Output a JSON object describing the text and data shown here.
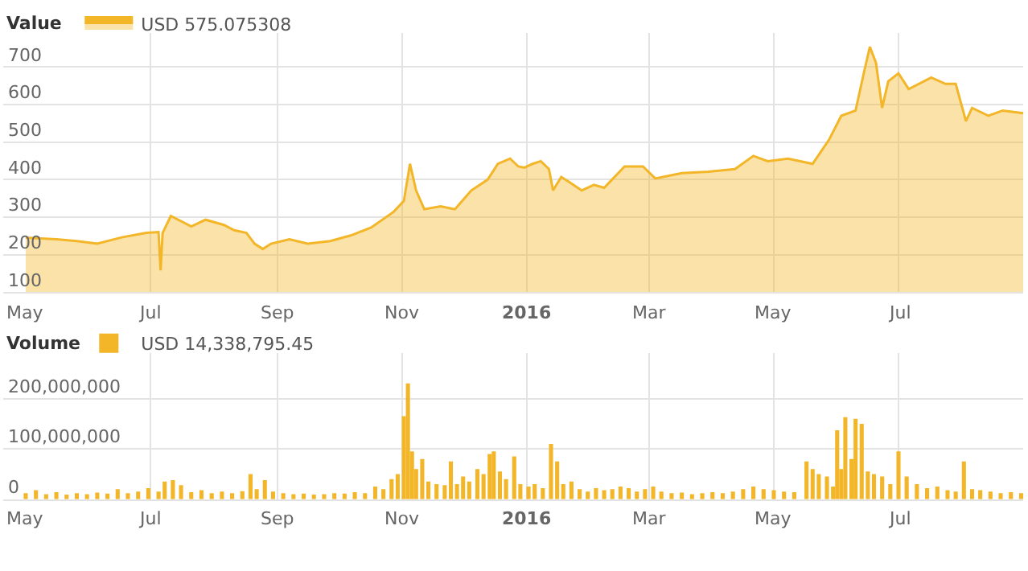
{
  "chart_data": [
    {
      "type": "area",
      "title": "Value",
      "legend": "top left",
      "grid": true,
      "xlim": [
        "2015-04-20",
        "2016-08-31"
      ],
      "xticks": [
        {
          "value": "2015-05-01",
          "label": "May"
        },
        {
          "value": "2015-07-01",
          "label": "Jul"
        },
        {
          "value": "2015-09-01",
          "label": "Sep"
        },
        {
          "value": "2015-11-01",
          "label": "Nov"
        },
        {
          "value": "2016-01-01",
          "label": "2016"
        },
        {
          "value": "2016-03-01",
          "label": "Mar"
        },
        {
          "value": "2016-05-01",
          "label": "May"
        },
        {
          "value": "2016-07-01",
          "label": "Jul"
        }
      ],
      "ylim": [
        100,
        790
      ],
      "yticks": [
        100,
        200,
        300,
        400,
        500,
        600,
        700
      ],
      "x": [
        "2015-05-01",
        "2015-05-16",
        "2015-05-26",
        "2015-06-05",
        "2015-06-17",
        "2015-06-29",
        "2015-07-05",
        "2015-07-06",
        "2015-07-07",
        "2015-07-11",
        "2015-07-21",
        "2015-07-28",
        "2015-08-06",
        "2015-08-11",
        "2015-08-17",
        "2015-08-21",
        "2015-08-25",
        "2015-08-29",
        "2015-09-07",
        "2015-09-16",
        "2015-09-27",
        "2015-10-07",
        "2015-10-17",
        "2015-10-28",
        "2015-11-02",
        "2015-11-05",
        "2015-11-08",
        "2015-11-12",
        "2015-11-20",
        "2015-11-27",
        "2015-12-05",
        "2015-12-13",
        "2015-12-18",
        "2015-12-24",
        "2015-12-28",
        "2015-12-31",
        "2016-01-04",
        "2016-01-08",
        "2016-01-12",
        "2016-01-14",
        "2016-01-18",
        "2016-01-22",
        "2016-01-28",
        "2016-02-03",
        "2016-02-08",
        "2016-02-18",
        "2016-02-27",
        "2016-03-04",
        "2016-03-17",
        "2016-03-30",
        "2016-04-12",
        "2016-04-21",
        "2016-04-28",
        "2016-05-08",
        "2016-05-20",
        "2016-05-28",
        "2016-06-03",
        "2016-06-10",
        "2016-06-14",
        "2016-06-17",
        "2016-06-20",
        "2016-06-23",
        "2016-06-26",
        "2016-07-01",
        "2016-07-06",
        "2016-07-17",
        "2016-07-24",
        "2016-07-29",
        "2016-08-03",
        "2016-08-06",
        "2016-08-14",
        "2016-08-21",
        "2016-08-31"
      ],
      "series": [
        {
          "name": "USD 575.075308",
          "color": "#f2b628",
          "values": [
            245,
            241,
            236,
            229,
            246,
            258,
            260,
            158,
            258,
            303,
            275,
            293,
            279,
            265,
            258,
            229,
            215,
            229,
            241,
            229,
            236,
            251,
            272,
            314,
            343,
            442,
            371,
            321,
            329,
            321,
            371,
            400,
            442,
            456,
            435,
            432,
            442,
            449,
            428,
            371,
            407,
            393,
            371,
            386,
            378,
            435,
            435,
            403,
            417,
            421,
            428,
            463,
            449,
            456,
            442,
            506,
            570,
            584,
            683,
            754,
            711,
            591,
            662,
            683,
            641,
            672,
            655,
            655,
            556,
            591,
            570,
            584,
            577
          ]
        }
      ]
    },
    {
      "type": "bar",
      "title": "Volume",
      "legend": "top left",
      "grid": true,
      "xlim": [
        "2015-04-20",
        "2016-08-31"
      ],
      "xticks": [
        {
          "value": "2015-05-01",
          "label": "May"
        },
        {
          "value": "2015-07-01",
          "label": "Jul"
        },
        {
          "value": "2015-09-01",
          "label": "Sep"
        },
        {
          "value": "2015-11-01",
          "label": "Nov"
        },
        {
          "value": "2016-01-01",
          "label": "2016"
        },
        {
          "value": "2016-03-01",
          "label": "Mar"
        },
        {
          "value": "2016-05-01",
          "label": "May"
        },
        {
          "value": "2016-07-01",
          "label": "Jul"
        }
      ],
      "ylim": [
        0,
        290000000
      ],
      "yticks": [
        0,
        {
          "value": 100000000,
          "label": "100,000,000"
        },
        {
          "value": 200000000,
          "label": "200,000,000"
        }
      ],
      "x": [
        "2015-05-01",
        "2015-05-06",
        "2015-05-11",
        "2015-05-16",
        "2015-05-21",
        "2015-05-26",
        "2015-05-31",
        "2015-06-05",
        "2015-06-10",
        "2015-06-15",
        "2015-06-20",
        "2015-06-25",
        "2015-06-30",
        "2015-07-05",
        "2015-07-08",
        "2015-07-12",
        "2015-07-16",
        "2015-07-21",
        "2015-07-26",
        "2015-07-31",
        "2015-08-05",
        "2015-08-10",
        "2015-08-15",
        "2015-08-19",
        "2015-08-22",
        "2015-08-26",
        "2015-08-30",
        "2015-09-04",
        "2015-09-09",
        "2015-09-14",
        "2015-09-19",
        "2015-09-24",
        "2015-09-29",
        "2015-10-04",
        "2015-10-09",
        "2015-10-14",
        "2015-10-19",
        "2015-10-23",
        "2015-10-27",
        "2015-10-30",
        "2015-11-02",
        "2015-11-04",
        "2015-11-06",
        "2015-11-08",
        "2015-11-11",
        "2015-11-14",
        "2015-11-18",
        "2015-11-22",
        "2015-11-25",
        "2015-11-28",
        "2015-12-01",
        "2015-12-04",
        "2015-12-08",
        "2015-12-11",
        "2015-12-14",
        "2015-12-16",
        "2015-12-19",
        "2015-12-22",
        "2015-12-26",
        "2015-12-29",
        "2016-01-02",
        "2016-01-05",
        "2016-01-09",
        "2016-01-13",
        "2016-01-16",
        "2016-01-19",
        "2016-01-23",
        "2016-01-27",
        "2016-01-31",
        "2016-02-04",
        "2016-02-08",
        "2016-02-12",
        "2016-02-16",
        "2016-02-20",
        "2016-02-24",
        "2016-02-28",
        "2016-03-03",
        "2016-03-07",
        "2016-03-12",
        "2016-03-17",
        "2016-03-22",
        "2016-03-27",
        "2016-04-01",
        "2016-04-06",
        "2016-04-11",
        "2016-04-16",
        "2016-04-21",
        "2016-04-26",
        "2016-05-01",
        "2016-05-06",
        "2016-05-11",
        "2016-05-17",
        "2016-05-20",
        "2016-05-23",
        "2016-05-27",
        "2016-05-30",
        "2016-06-01",
        "2016-06-03",
        "2016-06-05",
        "2016-06-08",
        "2016-06-10",
        "2016-06-13",
        "2016-06-16",
        "2016-06-19",
        "2016-06-23",
        "2016-06-27",
        "2016-07-01",
        "2016-07-05",
        "2016-07-10",
        "2016-07-15",
        "2016-07-20",
        "2016-07-25",
        "2016-07-29",
        "2016-08-02",
        "2016-08-06",
        "2016-08-10",
        "2016-08-15",
        "2016-08-20",
        "2016-08-25",
        "2016-08-30"
      ],
      "series": [
        {
          "name": "USD 14,338,795.45",
          "color": "#f2b628",
          "values": [
            12000000,
            18000000,
            10000000,
            14000000,
            9000000,
            12000000,
            10000000,
            13000000,
            11000000,
            20000000,
            12000000,
            15000000,
            22000000,
            15000000,
            35000000,
            38000000,
            28000000,
            14000000,
            18000000,
            12000000,
            15000000,
            12000000,
            16000000,
            50000000,
            20000000,
            38000000,
            15000000,
            12000000,
            10000000,
            11000000,
            9000000,
            10000000,
            12000000,
            11000000,
            14000000,
            12000000,
            25000000,
            20000000,
            40000000,
            50000000,
            165000000,
            230000000,
            95000000,
            60000000,
            80000000,
            35000000,
            30000000,
            28000000,
            75000000,
            30000000,
            45000000,
            35000000,
            60000000,
            50000000,
            90000000,
            95000000,
            55000000,
            40000000,
            85000000,
            30000000,
            25000000,
            30000000,
            22000000,
            110000000,
            75000000,
            30000000,
            35000000,
            20000000,
            15000000,
            22000000,
            18000000,
            20000000,
            25000000,
            22000000,
            15000000,
            20000000,
            25000000,
            15000000,
            12000000,
            13000000,
            10000000,
            12000000,
            14000000,
            12000000,
            15000000,
            20000000,
            25000000,
            20000000,
            18000000,
            15000000,
            14000000,
            75000000,
            60000000,
            50000000,
            45000000,
            25000000,
            137000000,
            60000000,
            163000000,
            80000000,
            160000000,
            150000000,
            55000000,
            50000000,
            45000000,
            30000000,
            95000000,
            45000000,
            30000000,
            22000000,
            25000000,
            18000000,
            15000000,
            75000000,
            20000000,
            18000000,
            15000000,
            12000000,
            14000000,
            12000000
          ]
        }
      ]
    }
  ]
}
